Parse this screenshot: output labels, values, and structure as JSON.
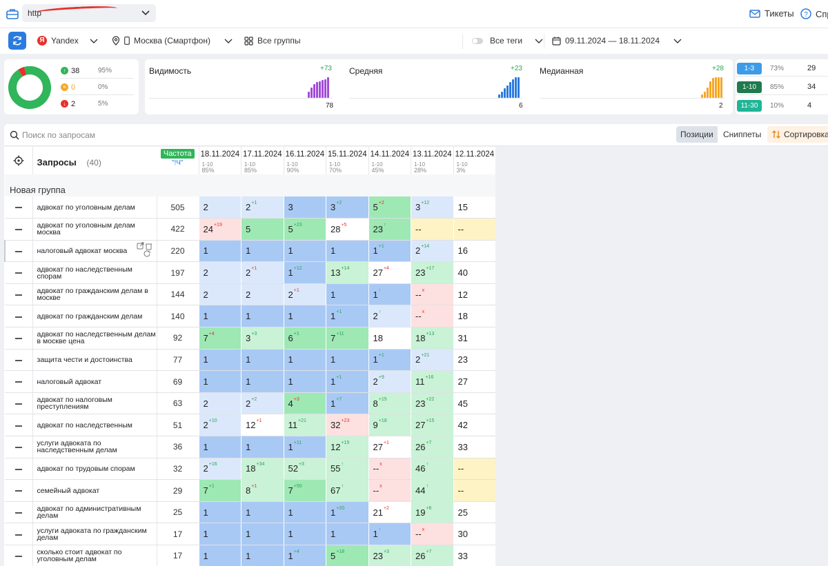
{
  "colors": {
    "accent": "#2a7bde",
    "green": "#30b55a",
    "red": "#e5322d",
    "orange": "#f5a623",
    "purple": "#a24bd9",
    "pos_top3": "#a9c9f5",
    "pos_top10_light": "#dbe8fb",
    "pos_green": "#9ee8b4",
    "pos_green_light": "#c9f2d6",
    "pos_red_light": "#fde0e0",
    "pos_yellow": "#fdf3c4",
    "pos_white": "#ffffff"
  },
  "topbar": {
    "url_text": "http",
    "tickets_label": "Тикеты",
    "help_label": "Спр"
  },
  "filters": {
    "engine": "Yandex",
    "region": "Москва (Смартфон)",
    "groups": "Все группы",
    "tags": "Все теги",
    "date_range": "09.11.2024 — 18.11.2024"
  },
  "summary": {
    "donut": {
      "up_share": 0.95,
      "same_share": 0.0,
      "down_share": 0.05
    },
    "rows": [
      {
        "type": "up",
        "count": "38",
        "pct": "95%"
      },
      {
        "type": "same",
        "count": "0",
        "pct": "0%"
      },
      {
        "type": "down",
        "count": "2",
        "pct": "5%"
      }
    ]
  },
  "metrics": [
    {
      "title": "Видимость",
      "delta": "+73",
      "value": "78",
      "color": "#a24bd9",
      "bars": [
        0.3,
        0.5,
        0.65,
        0.75,
        0.8,
        0.85,
        0.9,
        1.0
      ]
    },
    {
      "title": "Средняя",
      "delta": "+23",
      "value": "6",
      "color": "#2a7bde",
      "bars": [
        0.15,
        0.3,
        0.45,
        0.6,
        0.75,
        0.9,
        1.0,
        1.0
      ]
    },
    {
      "title": "Медианная",
      "delta": "+28",
      "value": "2",
      "color": "#f5a623",
      "bars": [
        0.15,
        0.3,
        0.5,
        0.8,
        0.95,
        1.0,
        1.0,
        1.0
      ]
    }
  ],
  "ranges": [
    {
      "label": "1-3",
      "pct": "73%",
      "count": "29",
      "color": "#3d9be9"
    },
    {
      "label": "1-10",
      "pct": "85%",
      "count": "34",
      "color": "#1f7a4d"
    },
    {
      "label": "11-30",
      "pct": "10%",
      "count": "4",
      "color": "#20b597"
    }
  ],
  "search": {
    "placeholder": "Поиск по запросам"
  },
  "views": {
    "positions": "Позиции",
    "snippets": "Сниппеты",
    "sort": "Сортировка"
  },
  "table": {
    "query_header": "Запросы",
    "query_count": "(40)",
    "freq_badge": "Частота",
    "freq_sub": "\"!Ч\"",
    "group_name": "Новая группа",
    "dates": [
      {
        "date": "18.11.2024",
        "range": "1-10",
        "pct": "85%"
      },
      {
        "date": "17.11.2024",
        "range": "1-10",
        "pct": "85%"
      },
      {
        "date": "16.11.2024",
        "range": "1-10",
        "pct": "90%"
      },
      {
        "date": "15.11.2024",
        "range": "1-10",
        "pct": "70%"
      },
      {
        "date": "14.11.2024",
        "range": "1-10",
        "pct": "45%"
      },
      {
        "date": "13.11.2024",
        "range": "1-10",
        "pct": "28%"
      },
      {
        "date": "12.11.2024",
        "range": "1-10",
        "pct": "3%"
      }
    ],
    "rows": [
      {
        "query": "адвокат по уголовным делам",
        "freq": "505",
        "cells": [
          [
            "2",
            "",
            ""
          ],
          [
            "2",
            "+1",
            "up"
          ],
          [
            "3",
            "",
            ""
          ],
          [
            "3",
            "+2",
            "up"
          ],
          [
            "5",
            "+2",
            "down"
          ],
          [
            "3",
            "+12",
            "up"
          ],
          [
            "15",
            "",
            ""
          ]
        ],
        "bg": [
          "b2",
          "b2",
          "b1",
          "b1",
          "g1",
          "b2",
          "w"
        ]
      },
      {
        "query": "адвокат по уголовным делам москва",
        "freq": "422",
        "cells": [
          [
            "24",
            "+19",
            "down"
          ],
          [
            "5",
            "",
            ""
          ],
          [
            "5",
            "+23",
            "up"
          ],
          [
            "28",
            "+5",
            "down"
          ],
          [
            "23",
            "↑",
            "up"
          ],
          [
            "--",
            "",
            ""
          ],
          [
            "--",
            "",
            ""
          ]
        ],
        "bg": [
          "r",
          "g1",
          "g1",
          "w",
          "g1",
          "y",
          "y"
        ]
      },
      {
        "query": "налоговый адвокат москва",
        "freq": "220",
        "cells": [
          [
            "1",
            "",
            ""
          ],
          [
            "1",
            "",
            ""
          ],
          [
            "1",
            "",
            ""
          ],
          [
            "1",
            "",
            ""
          ],
          [
            "1",
            "+1",
            "up"
          ],
          [
            "2",
            "+14",
            "up"
          ],
          [
            "16",
            "",
            ""
          ]
        ],
        "bg": [
          "b1",
          "b1",
          "b1",
          "b1",
          "b1",
          "b2",
          "w"
        ],
        "tools": true
      },
      {
        "query": "адвокат по наследственным спорам",
        "freq": "197",
        "cells": [
          [
            "2",
            "",
            ""
          ],
          [
            "2",
            "+1",
            "down"
          ],
          [
            "1",
            "+12",
            "up"
          ],
          [
            "13",
            "+14",
            "up"
          ],
          [
            "27",
            "+4",
            "down"
          ],
          [
            "23",
            "+17",
            "up"
          ],
          [
            "40",
            "",
            ""
          ]
        ],
        "bg": [
          "b2",
          "b2",
          "b1",
          "g2",
          "w",
          "g2",
          "w"
        ]
      },
      {
        "query": "адвокат по гражданским делам в москве",
        "freq": "144",
        "cells": [
          [
            "2",
            "",
            ""
          ],
          [
            "2",
            "",
            ""
          ],
          [
            "2",
            "+1",
            "down"
          ],
          [
            "1",
            "",
            ""
          ],
          [
            "1",
            "↑",
            "up"
          ],
          [
            "--",
            "x",
            "x"
          ],
          [
            "12",
            "",
            ""
          ]
        ],
        "bg": [
          "b2",
          "b2",
          "b2",
          "b1",
          "b1",
          "r",
          "w"
        ]
      },
      {
        "query": "адвокат по гражданским делам",
        "freq": "140",
        "cells": [
          [
            "1",
            "",
            ""
          ],
          [
            "1",
            "",
            ""
          ],
          [
            "1",
            "",
            ""
          ],
          [
            "1",
            "+1",
            "up"
          ],
          [
            "2",
            "↑",
            "up"
          ],
          [
            "--",
            "x",
            "x"
          ],
          [
            "18",
            "",
            ""
          ]
        ],
        "bg": [
          "b1",
          "b1",
          "b1",
          "b1",
          "b2",
          "r",
          "w"
        ]
      },
      {
        "query": "адвокат по наследственным делам в москве цена",
        "freq": "92",
        "cells": [
          [
            "7",
            "+4",
            "down"
          ],
          [
            "3",
            "+3",
            "up"
          ],
          [
            "6",
            "+1",
            "up"
          ],
          [
            "7",
            "+11",
            "up"
          ],
          [
            "18",
            "",
            ""
          ],
          [
            "18",
            "+13",
            "up"
          ],
          [
            "31",
            "",
            ""
          ]
        ],
        "bg": [
          "g1",
          "g2",
          "g1",
          "g1",
          "w",
          "g2",
          "w"
        ]
      },
      {
        "query": "защита чести и достоинства",
        "freq": "77",
        "cells": [
          [
            "1",
            "",
            ""
          ],
          [
            "1",
            "",
            ""
          ],
          [
            "1",
            "",
            ""
          ],
          [
            "1",
            "",
            ""
          ],
          [
            "1",
            "+1",
            "up"
          ],
          [
            "2",
            "+21",
            "up"
          ],
          [
            "23",
            "",
            ""
          ]
        ],
        "bg": [
          "b1",
          "b1",
          "b1",
          "b1",
          "b1",
          "b2",
          "w"
        ]
      },
      {
        "query": "налоговый адвокат",
        "freq": "69",
        "cells": [
          [
            "1",
            "",
            ""
          ],
          [
            "1",
            "",
            ""
          ],
          [
            "1",
            "",
            ""
          ],
          [
            "1",
            "+1",
            "up"
          ],
          [
            "2",
            "+9",
            "up"
          ],
          [
            "11",
            "+16",
            "up"
          ],
          [
            "27",
            "",
            ""
          ]
        ],
        "bg": [
          "b1",
          "b1",
          "b1",
          "b1",
          "b2",
          "g2",
          "w"
        ]
      },
      {
        "query": "адвокат по налоговым преступлениям",
        "freq": "63",
        "cells": [
          [
            "2",
            "",
            ""
          ],
          [
            "2",
            "+2",
            "up"
          ],
          [
            "4",
            "+3",
            "down"
          ],
          [
            "1",
            "+7",
            "up"
          ],
          [
            "8",
            "+15",
            "up"
          ],
          [
            "23",
            "+22",
            "up"
          ],
          [
            "45",
            "",
            ""
          ]
        ],
        "bg": [
          "b2",
          "b2",
          "g1",
          "b1",
          "g2",
          "g2",
          "w"
        ]
      },
      {
        "query": "адвокат по наследственным",
        "freq": "51",
        "cells": [
          [
            "2",
            "+10",
            "up"
          ],
          [
            "12",
            "+1",
            "down"
          ],
          [
            "11",
            "+21",
            "up"
          ],
          [
            "32",
            "+23",
            "down"
          ],
          [
            "9",
            "+18",
            "up"
          ],
          [
            "27",
            "+15",
            "up"
          ],
          [
            "42",
            "",
            ""
          ]
        ],
        "bg": [
          "b2",
          "w",
          "g2",
          "r",
          "g2",
          "g2",
          "w"
        ]
      },
      {
        "query": "услуги адвоката по наследственным делам",
        "freq": "36",
        "cells": [
          [
            "1",
            "",
            ""
          ],
          [
            "1",
            "",
            ""
          ],
          [
            "1",
            "+11",
            "up"
          ],
          [
            "12",
            "+15",
            "up"
          ],
          [
            "27",
            "+1",
            "down"
          ],
          [
            "26",
            "+7",
            "up"
          ],
          [
            "33",
            "",
            ""
          ]
        ],
        "bg": [
          "b1",
          "b1",
          "b1",
          "g2",
          "w",
          "g2",
          "w"
        ]
      },
      {
        "query": "адвокат по трудовым спорам",
        "freq": "32",
        "cells": [
          [
            "2",
            "+16",
            "up"
          ],
          [
            "18",
            "+34",
            "up"
          ],
          [
            "52",
            "+3",
            "up"
          ],
          [
            "55",
            "↑",
            "up"
          ],
          [
            "--",
            "x",
            "x"
          ],
          [
            "46",
            "↑",
            "up"
          ],
          [
            "--",
            "",
            ""
          ]
        ],
        "bg": [
          "b2",
          "g2",
          "g2",
          "g2",
          "r",
          "g2",
          "y"
        ]
      },
      {
        "query": "семейный адвокат",
        "freq": "29",
        "cells": [
          [
            "7",
            "+1",
            "up"
          ],
          [
            "8",
            "+1",
            "down"
          ],
          [
            "7",
            "+50",
            "up"
          ],
          [
            "67",
            "↑",
            "up"
          ],
          [
            "--",
            "x",
            "x"
          ],
          [
            "44",
            "↑",
            "up"
          ],
          [
            "--",
            "",
            ""
          ]
        ],
        "bg": [
          "g1",
          "g2",
          "g1",
          "g2",
          "r",
          "g2",
          "y"
        ]
      },
      {
        "query": "адвокат по административным делам",
        "freq": "25",
        "cells": [
          [
            "1",
            "",
            ""
          ],
          [
            "1",
            "",
            ""
          ],
          [
            "1",
            "",
            ""
          ],
          [
            "1",
            "+20",
            "up"
          ],
          [
            "21",
            "+2",
            "down"
          ],
          [
            "19",
            "+6",
            "up"
          ],
          [
            "25",
            "",
            ""
          ]
        ],
        "bg": [
          "b1",
          "b1",
          "b1",
          "b1",
          "w",
          "g2",
          "w"
        ]
      },
      {
        "query": "услуги адвоката по гражданским делам",
        "freq": "17",
        "cells": [
          [
            "1",
            "",
            ""
          ],
          [
            "1",
            "",
            ""
          ],
          [
            "1",
            "",
            ""
          ],
          [
            "1",
            "",
            ""
          ],
          [
            "1",
            "↑",
            "up"
          ],
          [
            "--",
            "x",
            "x"
          ],
          [
            "30",
            "",
            ""
          ]
        ],
        "bg": [
          "b1",
          "b1",
          "b1",
          "b1",
          "b1",
          "r",
          "w"
        ]
      },
      {
        "query": "сколько стоит адвокат по уголовным делам",
        "freq": "17",
        "cells": [
          [
            "1",
            "",
            ""
          ],
          [
            "1",
            "",
            ""
          ],
          [
            "1",
            "+4",
            "up"
          ],
          [
            "5",
            "+18",
            "up"
          ],
          [
            "23",
            "+3",
            "up"
          ],
          [
            "26",
            "+7",
            "up"
          ],
          [
            "33",
            "",
            ""
          ]
        ],
        "bg": [
          "b1",
          "b1",
          "b1",
          "g1",
          "g2",
          "g2",
          "w"
        ]
      }
    ]
  }
}
